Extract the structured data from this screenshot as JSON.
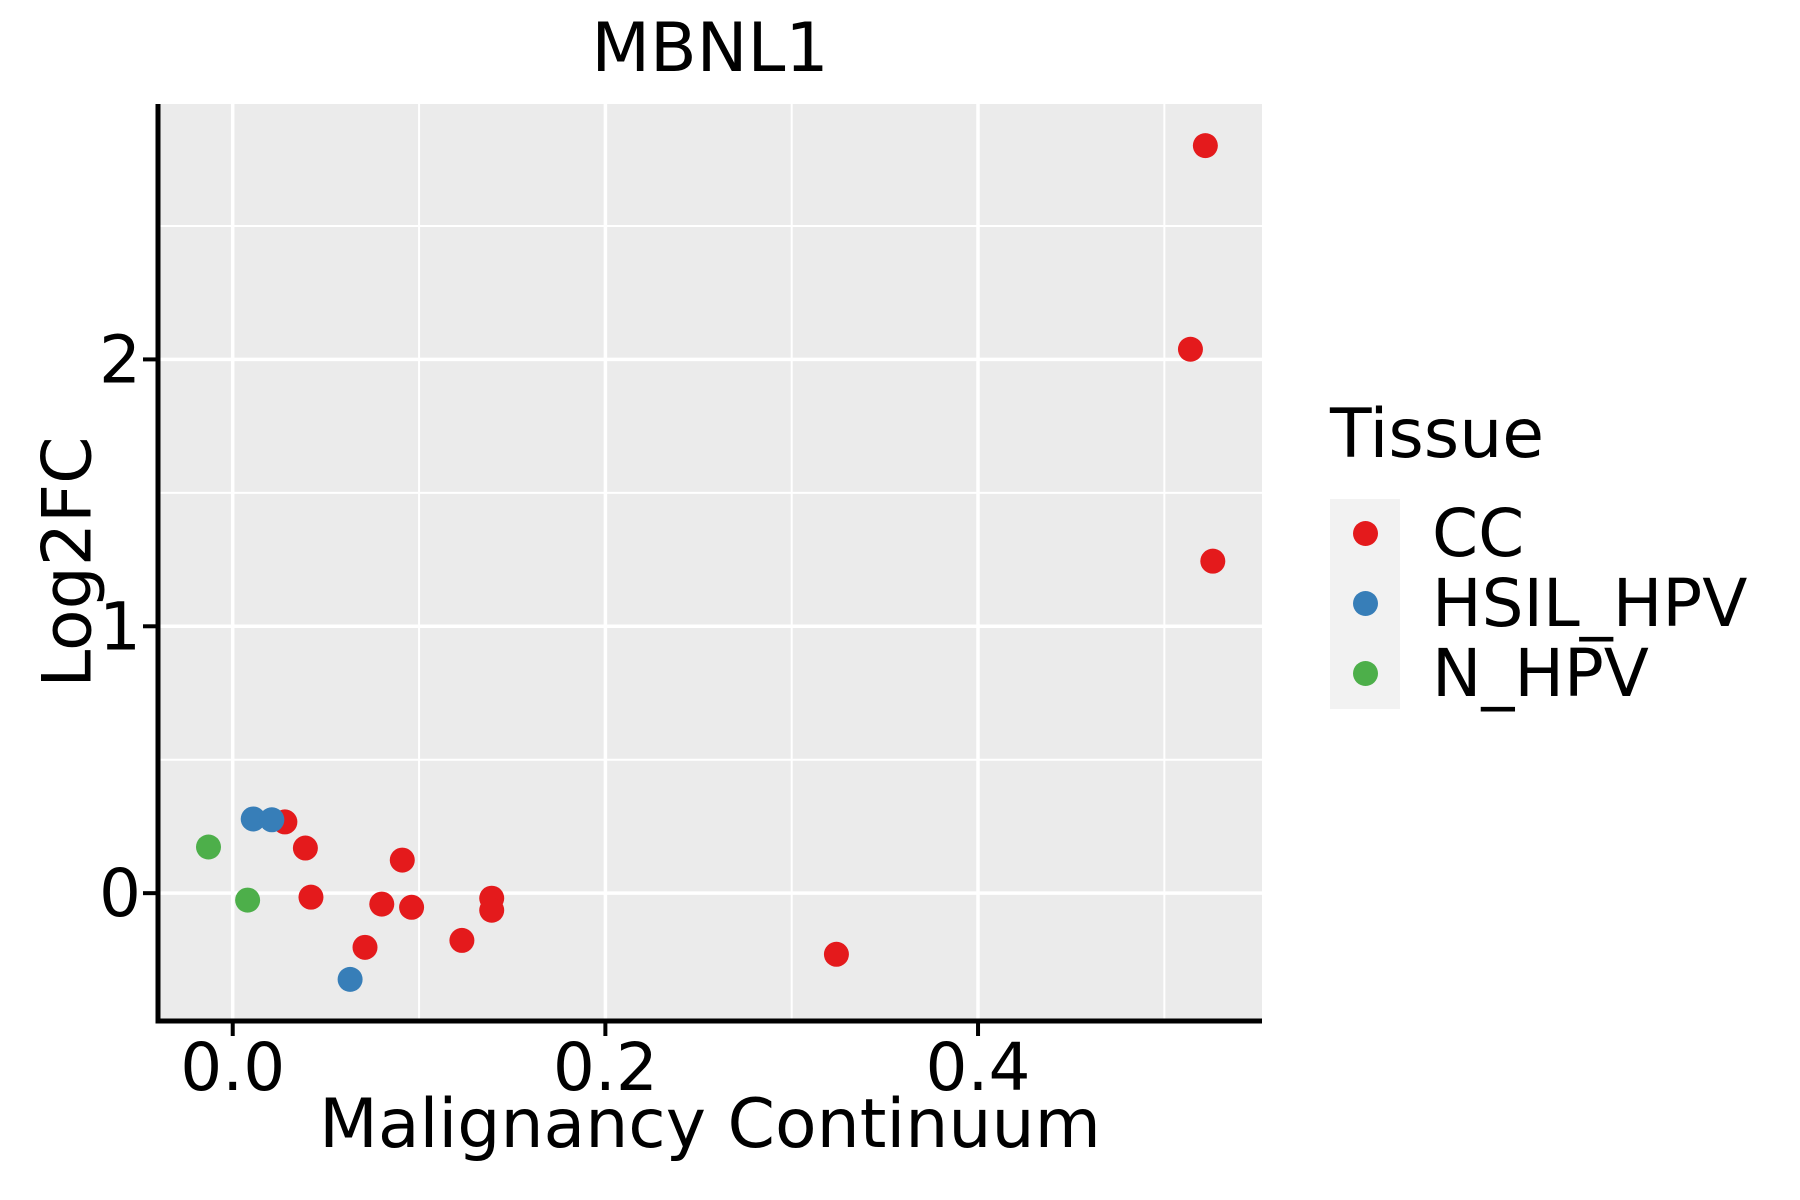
{
  "chart_data": {
    "type": "scatter",
    "title": "MBNL1",
    "xlabel": "Malignancy Continuum",
    "ylabel": "Log2FC",
    "xlim": [
      -0.0401,
      0.5524
    ],
    "ylim": [
      -0.479,
      2.957
    ],
    "grid": "on",
    "x_ticks": [
      {
        "value": 0.0,
        "label": "0.0"
      },
      {
        "value": 0.2,
        "label": "0.2"
      },
      {
        "value": 0.4,
        "label": "0.4"
      }
    ],
    "y_ticks": [
      {
        "value": 0,
        "label": "0"
      },
      {
        "value": 1,
        "label": "1"
      },
      {
        "value": 2,
        "label": "2"
      }
    ],
    "x_minor_gridlines": [
      0.1,
      0.3,
      0.5
    ],
    "y_minor_gridlines": [
      0.5,
      1.5,
      2.5
    ],
    "legend": {
      "title": "Tissue",
      "position": "right"
    },
    "series": [
      {
        "name": "CC",
        "color": "#E41A1C",
        "points": [
          [
            0.028,
            0.267
          ],
          [
            0.039,
            0.169
          ],
          [
            0.042,
            -0.015
          ],
          [
            0.091,
            0.124
          ],
          [
            0.08,
            -0.041
          ],
          [
            0.096,
            -0.053
          ],
          [
            0.071,
            -0.203
          ],
          [
            0.123,
            -0.177
          ],
          [
            0.139,
            -0.019
          ],
          [
            0.139,
            -0.064
          ],
          [
            0.324,
            -0.229
          ],
          [
            0.522,
            2.801
          ],
          [
            0.514,
            2.038
          ],
          [
            0.526,
            1.244
          ]
        ]
      },
      {
        "name": "HSIL_HPV",
        "color": "#377EB8",
        "points": [
          [
            0.011,
            0.278
          ],
          [
            0.021,
            0.275
          ],
          [
            0.063,
            -0.323
          ]
        ]
      },
      {
        "name": "N_HPV",
        "color": "#4DAF4A",
        "points": [
          [
            -0.013,
            0.173
          ],
          [
            0.008,
            -0.026
          ]
        ]
      }
    ]
  },
  "theme": {
    "panel_background": "#EBEBEB",
    "gridline_color": "#FFFFFF",
    "legend_key_background": "#F2F2F2",
    "axis_color": "#000000",
    "text_color": "#000000"
  }
}
